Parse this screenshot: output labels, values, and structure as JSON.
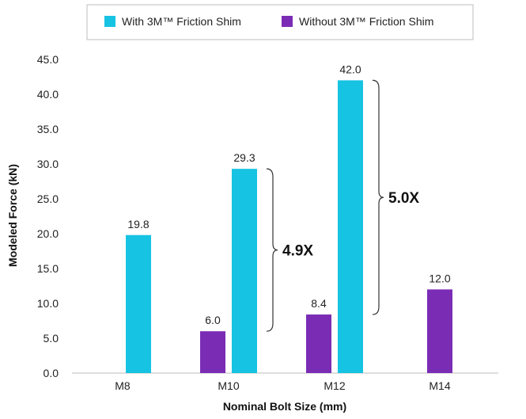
{
  "chart_data": {
    "type": "bar",
    "categories": [
      "M8",
      "M10",
      "M12",
      "M14"
    ],
    "series": [
      {
        "name": "With 3M™ Friction Shim",
        "color": "#17c3e2",
        "values": [
          19.8,
          29.3,
          42.0,
          null
        ]
      },
      {
        "name": "Without 3M™ Friction Shim",
        "color": "#7b2cb5",
        "values": [
          null,
          6.0,
          8.4,
          12.0
        ]
      }
    ],
    "data_labels": {
      "with": [
        "19.8",
        "29.3",
        "42.0",
        ""
      ],
      "without": [
        "",
        "6.0",
        "8.4",
        "12.0"
      ]
    },
    "xlabel": "Nominal Bolt Size (mm)",
    "ylabel": "Modeled Force (kN)",
    "ylim": [
      0,
      45
    ],
    "yticks": [
      "0.0",
      "5.0",
      "10.0",
      "15.0",
      "20.0",
      "25.0",
      "30.0",
      "35.0",
      "40.0",
      "45.0"
    ],
    "grid": false,
    "legend_position": "top",
    "annotations": [
      {
        "text": "4.9X",
        "category": "M10",
        "y_low": 6.0,
        "y_high": 29.3
      },
      {
        "text": "5.0X",
        "category": "M12",
        "y_low": 8.4,
        "y_high": 42.0
      }
    ]
  }
}
